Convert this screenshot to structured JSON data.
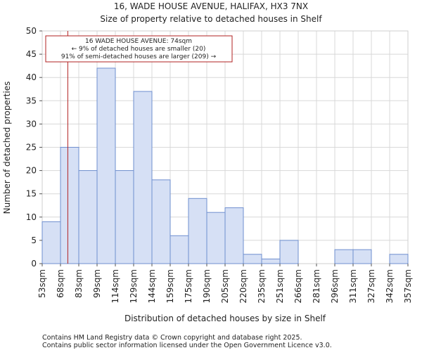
{
  "chart_data": {
    "type": "bar",
    "title_line1": "16, WADE HOUSE AVENUE, HALIFAX, HX3 7NX",
    "title_line2": "Size of property relative to detached houses in Shelf",
    "xlabel": "Distribution of detached houses by size in Shelf",
    "ylabel": "Number of detached properties",
    "ylim": [
      0,
      50
    ],
    "yticks": [
      0,
      5,
      10,
      15,
      20,
      25,
      30,
      35,
      40,
      45,
      50
    ],
    "bin_edges": [
      "53sqm",
      "68sqm",
      "83sqm",
      "99sqm",
      "114sqm",
      "129sqm",
      "144sqm",
      "159sqm",
      "175sqm",
      "190sqm",
      "205sqm",
      "220sqm",
      "235sqm",
      "251sqm",
      "266sqm",
      "281sqm",
      "296sqm",
      "311sqm",
      "327sqm",
      "342sqm",
      "357sqm"
    ],
    "values": [
      9,
      25,
      20,
      42,
      20,
      37,
      18,
      6,
      14,
      11,
      12,
      2,
      1,
      5,
      0,
      0,
      3,
      3,
      0,
      2
    ],
    "marker_bin_position": 1.4,
    "annotation": {
      "line1": "16 WADE HOUSE AVENUE: 74sqm",
      "line2": "← 9% of detached houses are smaller (20)",
      "line3": "91% of semi-detached houses are larger (209) →"
    },
    "colors": {
      "bar_fill": "#d6e0f5",
      "bar_edge": "#6f8fcf",
      "marker": "#b22222",
      "background": "#ffffff",
      "grid": "#d8d8d8"
    }
  },
  "footer": {
    "line1": "Contains HM Land Registry data © Crown copyright and database right 2025.",
    "line2": "Contains public sector information licensed under the Open Government Licence v3.0."
  }
}
